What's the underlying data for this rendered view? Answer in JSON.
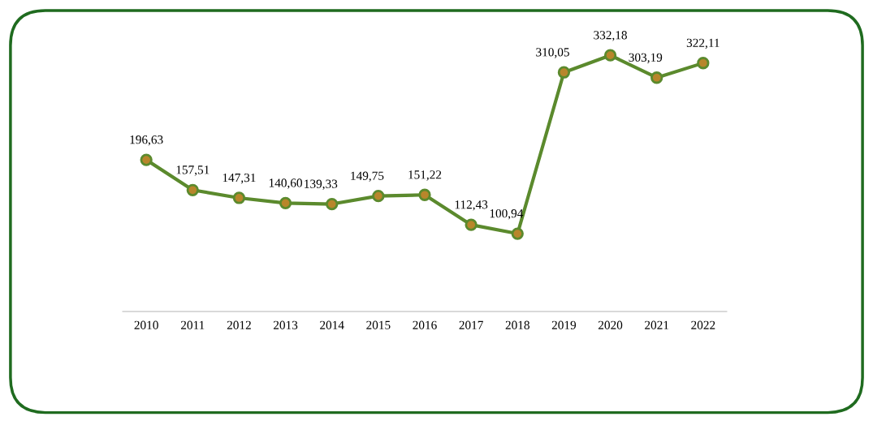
{
  "chart_data": {
    "type": "line",
    "categories": [
      "2010",
      "2011",
      "2012",
      "2013",
      "2014",
      "2015",
      "2016",
      "2017",
      "2018",
      "2019",
      "2020",
      "2021",
      "2022"
    ],
    "values": [
      196.63,
      157.51,
      147.31,
      140.6,
      139.33,
      149.75,
      151.22,
      112.43,
      100.94,
      310.05,
      332.18,
      303.19,
      322.11
    ],
    "value_labels": [
      "196,63",
      "157,51",
      "147,31",
      "140,60",
      "139,33",
      "149,75",
      "151,22",
      "112,43",
      "100,94",
      "310,05",
      "332,18",
      "303,19",
      "322,11"
    ],
    "color": "#5b8a2d",
    "marker": "circle",
    "line_style": "solid",
    "tick_labels": "x",
    "grid": false,
    "legend": false
  }
}
